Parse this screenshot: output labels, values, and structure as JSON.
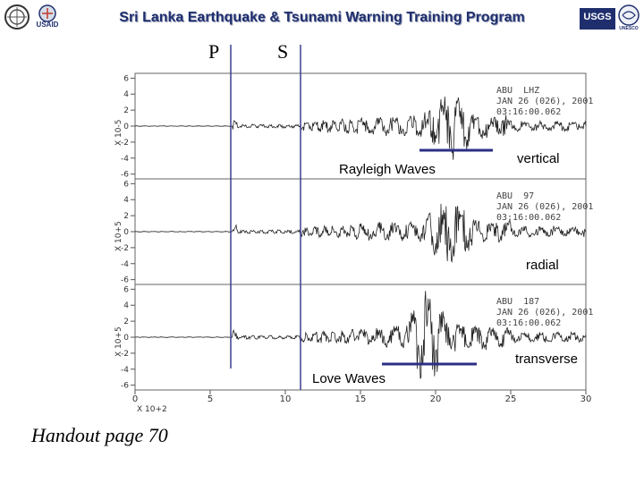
{
  "header": {
    "title": "Sri Lanka Earthquake & Tsunami Warning Training Program",
    "logo_left_text": "USAID",
    "logo_right_text": "USGS",
    "logo_right_sub": "UNESCO"
  },
  "phases": {
    "p_label": "P",
    "s_label": "S"
  },
  "panels": [
    {
      "id": "vertical",
      "station": "ABU",
      "channel": "LHZ",
      "date": "JAN 26 (026), 2001",
      "time": "03:16:00.062",
      "yticks": [
        "6",
        "4",
        "2",
        "0",
        "-2",
        "-4",
        "-6"
      ],
      "yunit": "X 10-5",
      "component_label": "vertical",
      "wave_label": "Rayleigh Waves"
    },
    {
      "id": "radial",
      "station": "ABU",
      "channel": "97",
      "date": "JAN 26 (026), 2001",
      "time": "03:16:00.062",
      "yticks": [
        "6",
        "4",
        "2",
        "0",
        "-2",
        "-4",
        "-6"
      ],
      "yunit": "X 10+5",
      "component_label": "radial"
    },
    {
      "id": "transverse",
      "station": "ABU",
      "channel": "187",
      "date": "JAN 26 (026), 2001",
      "time": "03:16:00.062",
      "yticks": [
        "6",
        "4",
        "2",
        "0",
        "-2",
        "-4",
        "-6"
      ],
      "yunit": "X 10+5",
      "component_label": "transverse",
      "wave_label": "Love Waves"
    }
  ],
  "xaxis": {
    "ticks": [
      "0",
      "5",
      "10",
      "15",
      "20",
      "25",
      "30"
    ],
    "unit": "X 10+2"
  },
  "handout": "Handout page 70",
  "colors": {
    "title": "#1f2f6e",
    "arrival_line": "#3b3f8f",
    "wave_bar": "#2b2f86",
    "trace": "#222222"
  }
}
